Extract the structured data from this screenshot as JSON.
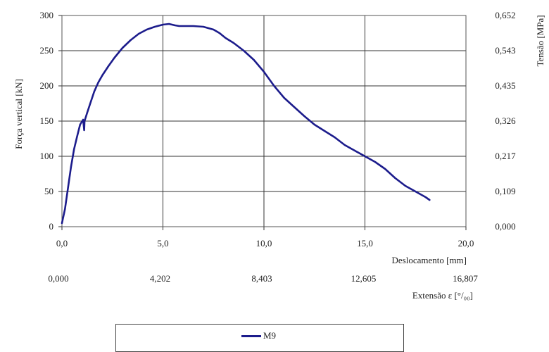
{
  "chart_data": {
    "type": "line",
    "ylabel": "Força vertical  [kN]",
    "y2label": "Tensão [MPa]",
    "xlabel": "Deslocamento [mm]",
    "x2label": "Extensão ε [°/₀₀]",
    "xlim": [
      0,
      20
    ],
    "ylim": [
      0,
      300
    ],
    "grid": true,
    "legend_position": "bottom",
    "x_ticks": [
      "0,0",
      "5,0",
      "10,0",
      "15,0",
      "20,0"
    ],
    "y_ticks": [
      "0",
      "50",
      "100",
      "150",
      "200",
      "250",
      "300"
    ],
    "y2_ticks": [
      "0,000",
      "0,109",
      "0,217",
      "0,326",
      "0,435",
      "0,543",
      "0,652"
    ],
    "x2_ticks": [
      "0,000",
      "4,202",
      "8,403",
      "12,605",
      "16,807"
    ],
    "series": [
      {
        "name": "M9",
        "color": "#1c1c8c",
        "x": [
          0.0,
          0.15,
          0.3,
          0.45,
          0.6,
          0.75,
          0.9,
          1.05,
          1.1,
          1.12,
          1.25,
          1.4,
          1.6,
          1.8,
          2.0,
          2.3,
          2.6,
          3.0,
          3.4,
          3.8,
          4.2,
          4.6,
          5.0,
          5.3,
          5.6,
          5.8,
          6.0,
          6.5,
          7.0,
          7.5,
          7.8,
          8.1,
          8.5,
          9.0,
          9.5,
          10.0,
          10.5,
          11.0,
          11.5,
          12.0,
          12.5,
          13.0,
          13.5,
          14.0,
          14.5,
          15.0,
          15.5,
          16.0,
          16.5,
          17.0,
          17.5,
          18.0,
          18.2
        ],
        "y": [
          5,
          25,
          55,
          85,
          110,
          128,
          145,
          152,
          137,
          150,
          162,
          175,
          192,
          205,
          215,
          228,
          240,
          254,
          265,
          274,
          280,
          284,
          287,
          288,
          286,
          285,
          285,
          285,
          284,
          280,
          275,
          268,
          261,
          250,
          237,
          220,
          200,
          183,
          170,
          157,
          145,
          136,
          127,
          116,
          108,
          100,
          92,
          82,
          69,
          58,
          50,
          42,
          38
        ]
      }
    ]
  }
}
